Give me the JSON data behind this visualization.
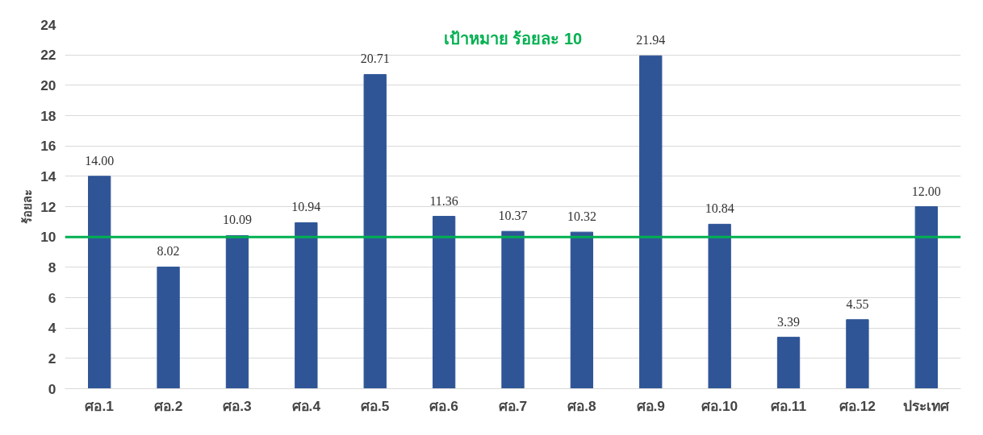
{
  "chart_data": {
    "type": "bar",
    "ylabel": "ร้อยละ",
    "categories": [
      "ศอ.1",
      "ศอ.2",
      "ศอ.3",
      "ศอ.4",
      "ศอ.5",
      "ศอ.6",
      "ศอ.7",
      "ศอ.8",
      "ศอ.9",
      "ศอ.10",
      "ศอ.11",
      "ศอ.12",
      "ประเทศ"
    ],
    "values": [
      14.0,
      8.02,
      10.09,
      10.94,
      20.71,
      11.36,
      10.37,
      10.32,
      21.94,
      10.84,
      3.39,
      4.55,
      12.0
    ],
    "value_labels": [
      "14.00",
      "8.02",
      "10.09",
      "10.94",
      "20.71",
      "11.36",
      "10.37",
      "10.32",
      "21.94",
      "10.84",
      "3.39",
      "4.55",
      "12.00"
    ],
    "color": "#2f5597",
    "ylim": [
      0,
      24
    ],
    "yticks": [
      0,
      2,
      4,
      6,
      8,
      10,
      12,
      14,
      16,
      18,
      20,
      22,
      24
    ],
    "grid": "y",
    "ref_lines": [
      {
        "axis": "y",
        "value": 10,
        "label": "เป้าหมาย ร้อยละ 10",
        "color": "#00b050"
      }
    ]
  }
}
